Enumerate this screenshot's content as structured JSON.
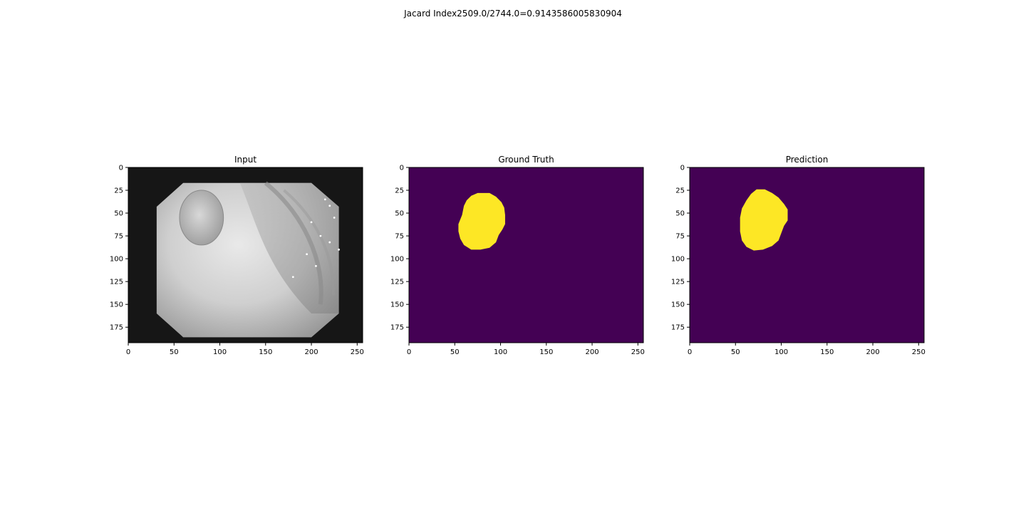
{
  "figure": {
    "suptitle": "Jacard Index2509.0/2744.0=0.9143586005830904"
  },
  "colors": {
    "background": "#ffffff",
    "viridis_low": "#440154",
    "viridis_high": "#fde725",
    "axis": "#000000"
  },
  "chart_data": [
    {
      "type": "heatmap",
      "title": "Input",
      "colormap": "gray",
      "xlim": [
        0,
        256
      ],
      "ylim": [
        192,
        0
      ],
      "xticks": [
        0,
        50,
        100,
        150,
        200,
        250
      ],
      "yticks": [
        0,
        25,
        50,
        75,
        100,
        125,
        150,
        175
      ],
      "xlabel": "",
      "ylabel": "",
      "content": "grayscale endoscopy frame with octagonal field of view"
    },
    {
      "type": "heatmap",
      "title": "Ground Truth",
      "colormap": "viridis",
      "xlim": [
        0,
        256
      ],
      "ylim": [
        192,
        0
      ],
      "xticks": [
        0,
        50,
        100,
        150,
        200,
        250
      ],
      "yticks": [
        0,
        25,
        50,
        75,
        100,
        125,
        150,
        175
      ],
      "xlabel": "",
      "ylabel": "",
      "mask_outline": [
        [
          75,
          28
        ],
        [
          88,
          28
        ],
        [
          95,
          32
        ],
        [
          101,
          38
        ],
        [
          104,
          44
        ],
        [
          105,
          52
        ],
        [
          105,
          62
        ],
        [
          102,
          68
        ],
        [
          98,
          74
        ],
        [
          95,
          82
        ],
        [
          88,
          88
        ],
        [
          78,
          90
        ],
        [
          68,
          90
        ],
        [
          60,
          85
        ],
        [
          56,
          78
        ],
        [
          54,
          70
        ],
        [
          54,
          62
        ],
        [
          58,
          52
        ],
        [
          60,
          42
        ],
        [
          63,
          36
        ],
        [
          68,
          31
        ]
      ]
    },
    {
      "type": "heatmap",
      "title": "Prediction",
      "colormap": "viridis",
      "xlim": [
        0,
        256
      ],
      "ylim": [
        192,
        0
      ],
      "xticks": [
        0,
        50,
        100,
        150,
        200,
        250
      ],
      "yticks": [
        0,
        25,
        50,
        75,
        100,
        125,
        150,
        175
      ],
      "xlabel": "",
      "ylabel": "",
      "mask_outline": [
        [
          73,
          24
        ],
        [
          82,
          24
        ],
        [
          90,
          28
        ],
        [
          97,
          33
        ],
        [
          103,
          40
        ],
        [
          107,
          46
        ],
        [
          107,
          58
        ],
        [
          103,
          64
        ],
        [
          100,
          72
        ],
        [
          97,
          80
        ],
        [
          90,
          86
        ],
        [
          80,
          90
        ],
        [
          70,
          91
        ],
        [
          62,
          87
        ],
        [
          57,
          80
        ],
        [
          55,
          70
        ],
        [
          55,
          55
        ],
        [
          57,
          45
        ],
        [
          62,
          36
        ],
        [
          67,
          29
        ]
      ]
    }
  ]
}
